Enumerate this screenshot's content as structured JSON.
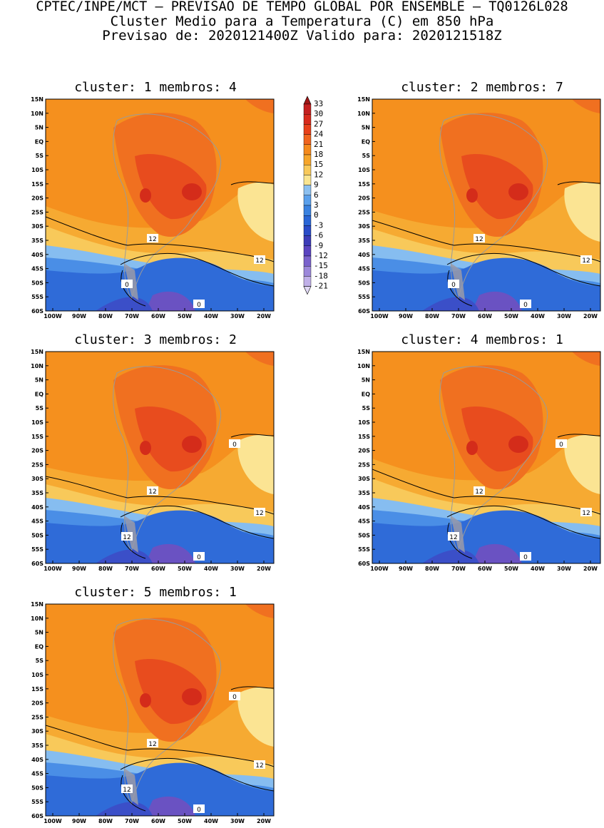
{
  "header": {
    "line1": "CPTEC/INPE/MCT – PREVISAO DE TEMPO GLOBAL POR ENSEMBLE – TQ0126L028",
    "line2": "Cluster Medio para a Temperatura (C) em 850 hPa",
    "line3": "Previsao de: 2020121400Z   Valido para: 2020121518Z"
  },
  "panels": [
    {
      "title": "cluster: 1  membros: 4",
      "labels": [
        "12",
        "12",
        "0",
        "0"
      ]
    },
    {
      "title": "cluster: 2  membros: 7",
      "labels": [
        "12",
        "12",
        "0",
        "0"
      ]
    },
    {
      "title": "cluster: 3  membros: 2",
      "labels": [
        "12",
        "12",
        "12",
        "0",
        "0"
      ]
    },
    {
      "title": "cluster: 4  membros: 1",
      "labels": [
        "12",
        "12",
        "12",
        "0",
        "0"
      ]
    },
    {
      "title": "cluster: 5  membros: 1",
      "labels": [
        "12",
        "12",
        "12",
        "0",
        "0"
      ]
    }
  ],
  "axes": {
    "lat_ticks": [
      "15N",
      "10N",
      "5N",
      "EQ",
      "5S",
      "10S",
      "15S",
      "20S",
      "25S",
      "30S",
      "35S",
      "40S",
      "45S",
      "50S",
      "55S",
      "60S"
    ],
    "lon_ticks": [
      "100W",
      "90W",
      "80W",
      "70W",
      "60W",
      "50W",
      "40W",
      "30W",
      "20W"
    ]
  },
  "colorbar": {
    "labels": [
      "33",
      "30",
      "27",
      "24",
      "21",
      "18",
      "15",
      "12",
      "9",
      "6",
      "3",
      "0",
      "-3",
      "-6",
      "-9",
      "-12",
      "-15",
      "-18",
      "-21"
    ],
    "colors": [
      "#a01616",
      "#c42020",
      "#d82a1c",
      "#e8401a",
      "#f0641e",
      "#f58a1c",
      "#f6a52a",
      "#f8c95a",
      "#fae590",
      "#8cc0f0",
      "#5aa0ec",
      "#3a82e0",
      "#2a66d6",
      "#2a4cc8",
      "#3c3cb8",
      "#5a44c0",
      "#7a62cc",
      "#9c88da",
      "#c0b0e8",
      "#e0d8f4"
    ]
  },
  "colors": {
    "land_outline": "#9a9a9a",
    "contour": "#000000"
  }
}
